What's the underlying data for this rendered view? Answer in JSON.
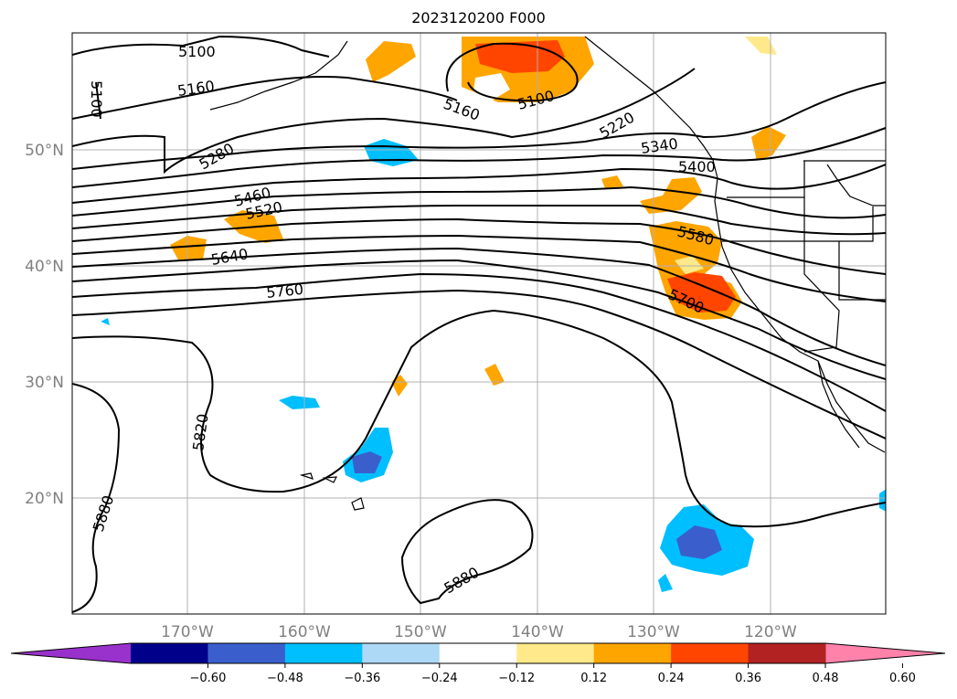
{
  "title": "2023120200 F000",
  "lat_labels": [
    "50°N",
    "40°N",
    "30°N",
    "20°N"
  ],
  "lon_labels": [
    "170°W",
    "160°W",
    "150°W",
    "140°W",
    "130°W",
    "120°W"
  ],
  "contour_labels": [
    "5100",
    "5160",
    "5100",
    "5160",
    "5100",
    "5220",
    "5340",
    "5400",
    "5280",
    "5460",
    "5520",
    "5640",
    "5580",
    "5760",
    "5700",
    "5820",
    "5880",
    "5880"
  ],
  "colorbar": {
    "ticks": [
      "−0.60",
      "−0.48",
      "−0.36",
      "−0.24",
      "−0.12",
      "0.12",
      "0.24",
      "0.36",
      "0.48",
      "0.60"
    ],
    "colors": [
      "#9932cc",
      "#00008b",
      "#3a5fcd",
      "#00bfff",
      "#add8f6",
      "#ffffff",
      "#ffe98a",
      "#ffa500",
      "#ff4500",
      "#b22222",
      "#ff82ab"
    ]
  },
  "colors": {
    "contour": "#000000",
    "grid": "#b0b0b0",
    "coast": "#000000"
  }
}
